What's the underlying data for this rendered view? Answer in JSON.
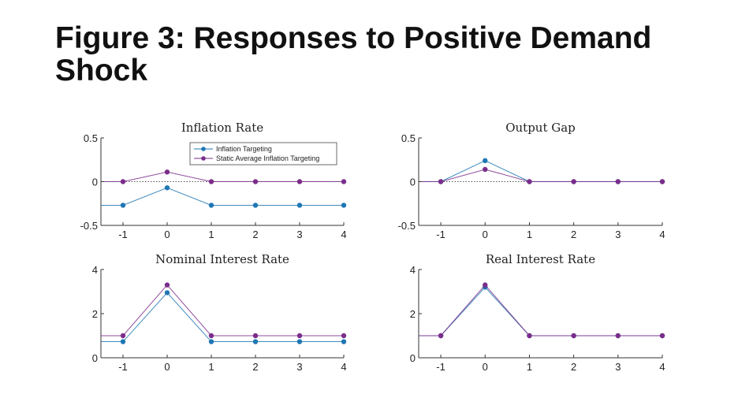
{
  "slide": {
    "title": "Figure 3: Responses to Positive Demand Shock"
  },
  "colors": {
    "inflation_targeting": "#1f77b4",
    "static_ait": "#7b2d8b",
    "axis": "#333333",
    "zero_line": "#555555"
  },
  "chart_data": [
    {
      "type": "line",
      "title": "Inflation Rate",
      "xlabel": "",
      "ylabel": "",
      "x": [
        -1,
        0,
        1,
        2,
        3,
        4
      ],
      "x_ticks": [
        "-1",
        "0",
        "1",
        "2",
        "3",
        "4"
      ],
      "y_ticks": [
        "0.5",
        "0",
        "-0.5"
      ],
      "xlim": [
        -1.5,
        4
      ],
      "ylim": [
        -0.5,
        0.5
      ],
      "zero_line": 0,
      "legend": "top-center",
      "series": [
        {
          "name": "Inflation Targeting",
          "color_key": "inflation_targeting",
          "values": [
            -0.27,
            -0.07,
            -0.27,
            -0.27,
            -0.27,
            -0.27
          ],
          "pre_value": -0.27
        },
        {
          "name": "Static Average Inflation Targeting",
          "color_key": "static_ait",
          "values": [
            0,
            0.11,
            0,
            0,
            0,
            0
          ],
          "pre_value": 0
        }
      ]
    },
    {
      "type": "line",
      "title": "Output Gap",
      "xlabel": "",
      "ylabel": "",
      "x": [
        -1,
        0,
        1,
        2,
        3,
        4
      ],
      "x_ticks": [
        "-1",
        "0",
        "1",
        "2",
        "3",
        "4"
      ],
      "y_ticks": [
        "0.5",
        "0",
        "-0.5"
      ],
      "xlim": [
        -1.5,
        4
      ],
      "ylim": [
        -0.5,
        0.5
      ],
      "zero_line": 0,
      "series": [
        {
          "name": "Inflation Targeting",
          "color_key": "inflation_targeting",
          "values": [
            0,
            0.24,
            0,
            0,
            0,
            0
          ],
          "pre_value": 0
        },
        {
          "name": "Static Average Inflation Targeting",
          "color_key": "static_ait",
          "values": [
            0,
            0.14,
            0,
            0,
            0,
            0
          ],
          "pre_value": 0
        }
      ]
    },
    {
      "type": "line",
      "title": "Nominal Interest Rate",
      "xlabel": "",
      "ylabel": "",
      "x": [
        -1,
        0,
        1,
        2,
        3,
        4
      ],
      "x_ticks": [
        "-1",
        "0",
        "1",
        "2",
        "3",
        "4"
      ],
      "y_ticks": [
        "4",
        "2",
        "0"
      ],
      "xlim": [
        -1.5,
        4
      ],
      "ylim": [
        0,
        4
      ],
      "zero_line": 0,
      "series": [
        {
          "name": "Inflation Targeting",
          "color_key": "inflation_targeting",
          "values": [
            0.73,
            2.95,
            0.73,
            0.73,
            0.73,
            0.73
          ],
          "pre_value": 0.73
        },
        {
          "name": "Static Average Inflation Targeting",
          "color_key": "static_ait",
          "values": [
            1.0,
            3.3,
            1.0,
            1.0,
            1.0,
            1.0
          ],
          "pre_value": 1.0
        }
      ]
    },
    {
      "type": "line",
      "title": "Real Interest Rate",
      "xlabel": "",
      "ylabel": "",
      "x": [
        -1,
        0,
        1,
        2,
        3,
        4
      ],
      "x_ticks": [
        "-1",
        "0",
        "1",
        "2",
        "3",
        "4"
      ],
      "y_ticks": [
        "4",
        "2",
        "0"
      ],
      "xlim": [
        -1.5,
        4
      ],
      "ylim": [
        0,
        4
      ],
      "zero_line": 0,
      "series": [
        {
          "name": "Inflation Targeting",
          "color_key": "inflation_targeting",
          "values": [
            1.0,
            3.2,
            1.0,
            1.0,
            1.0,
            1.0
          ],
          "pre_value": 1.0
        },
        {
          "name": "Static Average Inflation Targeting",
          "color_key": "static_ait",
          "values": [
            1.0,
            3.3,
            1.0,
            1.0,
            1.0,
            1.0
          ],
          "pre_value": 1.0
        }
      ]
    }
  ]
}
